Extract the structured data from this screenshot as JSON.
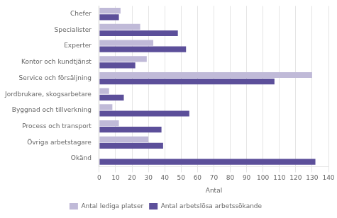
{
  "chart_data": {
    "type": "bar",
    "orientation": "horizontal",
    "categories": [
      "Okänd",
      "Övriga arbetstagare",
      "Process och transport",
      "Byggnad och tillverkning",
      "Jordbrukare, skogsarbetare",
      "Service och försäljning",
      "Kontor och kundtjänst",
      "Experter",
      "Specialister",
      "Chefer"
    ],
    "series": [
      {
        "name": "Antal lediga platser",
        "color": "#c0bad8",
        "values": [
          0,
          30,
          12,
          8,
          6,
          130,
          29,
          33,
          25,
          13
        ]
      },
      {
        "name": "Antal arbetslösa arbetssökande",
        "color": "#5c4f9a",
        "values": [
          132,
          39,
          38,
          55,
          15,
          107,
          22,
          53,
          48,
          12
        ]
      }
    ],
    "xlabel": "Antal",
    "xlim": [
      0,
      140
    ],
    "xticks": [
      0,
      10,
      20,
      30,
      40,
      50,
      60,
      70,
      80,
      90,
      100,
      110,
      120,
      130,
      140
    ],
    "grid": true,
    "legend": "bottom"
  }
}
